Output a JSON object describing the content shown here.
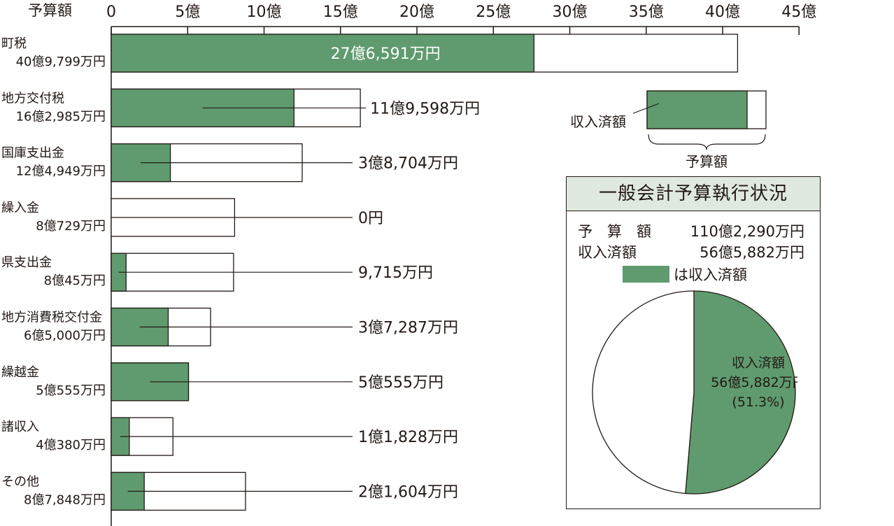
{
  "colors": {
    "received": "#5f9b6e",
    "budget": "#ffffff",
    "stroke": "#231815"
  },
  "chart_data": [
    {
      "type": "bar",
      "xlabel": "予算額",
      "xlim": [
        0,
        45
      ],
      "ticks": [
        {
          "v": 0,
          "label": "0"
        },
        {
          "v": 5,
          "label": "5億"
        },
        {
          "v": 10,
          "label": "10億"
        },
        {
          "v": 15,
          "label": "15億"
        },
        {
          "v": 20,
          "label": "20億"
        },
        {
          "v": 25,
          "label": "25億"
        },
        {
          "v": 30,
          "label": "30億"
        },
        {
          "v": 35,
          "label": "35億"
        },
        {
          "v": 40,
          "label": "40億"
        },
        {
          "v": 45,
          "label": "45億"
        }
      ],
      "categories": [
        {
          "name": "町税",
          "budget_label": "40億9,799万円",
          "budget": 40.9799,
          "received": 27.6591,
          "received_label": "27億6,591万円"
        },
        {
          "name": "地方交付税",
          "budget_label": "16億2,985万円",
          "budget": 16.2985,
          "received": 11.9598,
          "received_label": "11億9,598万円"
        },
        {
          "name": "国庫支出金",
          "budget_label": "12億4,949万円",
          "budget": 12.4949,
          "received": 3.8704,
          "received_label": "3億8,704万円"
        },
        {
          "name": "繰入金",
          "budget_label": "8億729万円",
          "budget": 8.0729,
          "received": 0,
          "received_label": "0円"
        },
        {
          "name": "県支出金",
          "budget_label": "8億45万円",
          "budget": 8.0045,
          "received": 0.9715,
          "received_label": "9,715万円"
        },
        {
          "name": "地方消費税交付金",
          "budget_label": "6億5,000万円",
          "budget": 6.5,
          "received": 3.7287,
          "received_label": "3億7,287万円"
        },
        {
          "name": "繰越金",
          "budget_label": "5億555万円",
          "budget": 5.0555,
          "received": 5.0555,
          "received_label": "5億555万円"
        },
        {
          "name": "諸収入",
          "budget_label": "4億380万円",
          "budget": 4.038,
          "received": 1.1828,
          "received_label": "1億1,828万円"
        },
        {
          "name": "その他",
          "budget_label": "8億7,848万円",
          "budget": 8.7848,
          "received": 2.1604,
          "received_label": "2億1,604万円"
        }
      ],
      "legend": {
        "received_label": "収入済額",
        "budget_label": "予算額"
      }
    },
    {
      "type": "pie",
      "title": "一般会計予算執行状況",
      "budget_label": "予　算　額",
      "budget_value": "110億2,290万円",
      "received_label": "収入済額",
      "received_value": "56億5,882万円",
      "legend_text": "は収入済額",
      "slices": [
        {
          "name": "収入済額",
          "value": 56.5882,
          "pct": 51.3,
          "value_label": "56億5,882万円",
          "pct_label": "(51.3%)"
        },
        {
          "name": "",
          "value": 53.6408
        }
      ]
    }
  ]
}
